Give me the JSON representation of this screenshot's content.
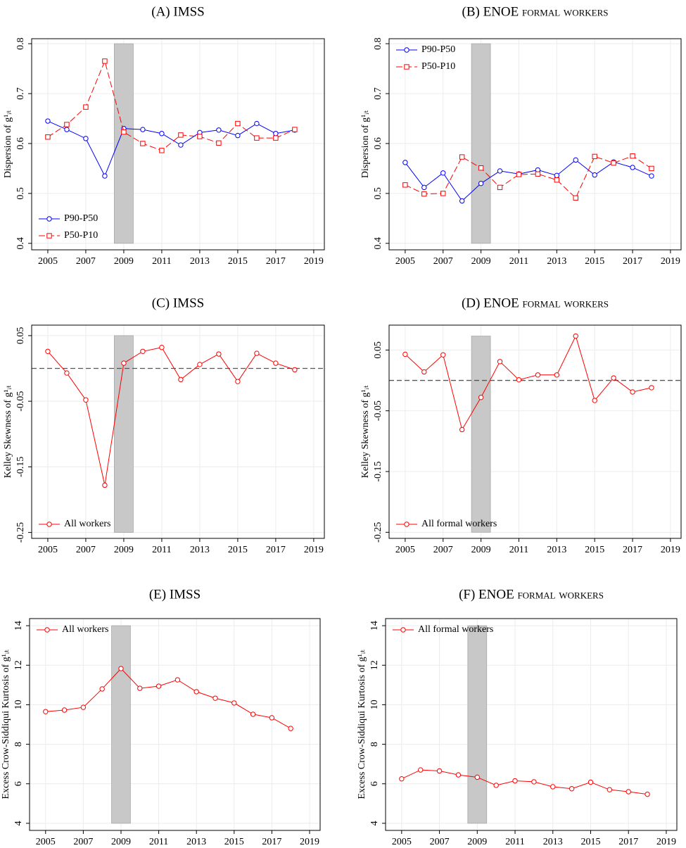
{
  "chart_data": [
    {
      "type": "line",
      "title": "(A) IMSS",
      "y_label": "Dispersion of g¹ᵢₜ",
      "x": [
        2005,
        2006,
        2007,
        2008,
        2009,
        2010,
        2011,
        2012,
        2013,
        2014,
        2015,
        2016,
        2017,
        2018
      ],
      "xlim": [
        2004.15,
        2019.56
      ],
      "xticks": [
        2005,
        2007,
        2009,
        2011,
        2013,
        2015,
        2017,
        2019
      ],
      "ylim": [
        0.387,
        0.81
      ],
      "yticks": [
        0.4,
        0.5,
        0.6,
        0.7,
        0.8
      ],
      "grid": true,
      "legend": "lower left",
      "shade": {
        "x": [
          2008.5,
          2009.5
        ],
        "y": [
          0.4,
          0.8
        ]
      },
      "series": [
        {
          "name": "P90-P50",
          "color": "#0000ff",
          "marker": "circle",
          "linestyle": "solid",
          "values": [
            0.645,
            0.628,
            0.61,
            0.535,
            0.63,
            0.628,
            0.62,
            0.597,
            0.622,
            0.627,
            0.616,
            0.64,
            0.62,
            0.627
          ]
        },
        {
          "name": "P50-P10",
          "color": "#ff0000",
          "marker": "square",
          "linestyle": "dashed",
          "values": [
            0.613,
            0.638,
            0.673,
            0.765,
            0.623,
            0.6,
            0.586,
            0.617,
            0.614,
            0.601,
            0.64,
            0.611,
            0.611,
            0.628
          ]
        }
      ]
    },
    {
      "type": "line",
      "title": "(B) ENOE formal workers",
      "y_label": "Dispersion of g¹ᵢₜ",
      "x": [
        2005,
        2006,
        2007,
        2008,
        2009,
        2010,
        2011,
        2012,
        2013,
        2014,
        2015,
        2016,
        2017,
        2018
      ],
      "xlim": [
        2004.15,
        2019.56
      ],
      "xticks": [
        2005,
        2007,
        2009,
        2011,
        2013,
        2015,
        2017,
        2019
      ],
      "ylim": [
        0.387,
        0.81
      ],
      "yticks": [
        0.4,
        0.5,
        0.6,
        0.7,
        0.8
      ],
      "grid": true,
      "legend": "upper left",
      "shade": {
        "x": [
          2008.5,
          2009.5
        ],
        "y": [
          0.4,
          0.8
        ]
      },
      "series": [
        {
          "name": "P90-P50",
          "color": "#0000ff",
          "marker": "circle",
          "linestyle": "solid",
          "values": [
            0.562,
            0.512,
            0.541,
            0.485,
            0.52,
            0.545,
            0.539,
            0.547,
            0.536,
            0.567,
            0.537,
            0.563,
            0.552,
            0.535
          ]
        },
        {
          "name": "P50-P10",
          "color": "#ff0000",
          "marker": "square",
          "linestyle": "dashed",
          "values": [
            0.517,
            0.499,
            0.5,
            0.573,
            0.551,
            0.512,
            0.538,
            0.539,
            0.527,
            0.491,
            0.574,
            0.561,
            0.575,
            0.55
          ]
        }
      ]
    },
    {
      "type": "line",
      "title": "(C) IMSS",
      "y_label": "Kelley Skewness of g¹ᵢₜ",
      "x": [
        2005,
        2006,
        2007,
        2008,
        2009,
        2010,
        2011,
        2012,
        2013,
        2014,
        2015,
        2016,
        2017,
        2018
      ],
      "xlim": [
        2004.15,
        2019.56
      ],
      "xticks": [
        2005,
        2007,
        2009,
        2011,
        2013,
        2015,
        2017,
        2019
      ],
      "ylim": [
        -0.259,
        0.066
      ],
      "yticks": [
        -0.25,
        -0.15,
        -0.05,
        0.05
      ],
      "grid": true,
      "legend": "lower left",
      "shade": {
        "x": [
          2008.5,
          2009.5
        ],
        "y": [
          -0.25,
          0.05
        ]
      },
      "hline": 0,
      "series": [
        {
          "name": "All workers",
          "color": "#ff0000",
          "marker": "circle",
          "linestyle": "solid",
          "values": [
            0.026,
            -0.007,
            -0.048,
            -0.178,
            0.008,
            0.026,
            0.032,
            -0.017,
            0.006,
            0.022,
            -0.02,
            0.023,
            0.008,
            -0.002
          ]
        }
      ]
    },
    {
      "type": "line",
      "title": "(D) ENOE formal workers",
      "y_label": "Kelley Skewness of g¹ᵢₜ",
      "x": [
        2005,
        2006,
        2007,
        2008,
        2009,
        2010,
        2011,
        2012,
        2013,
        2014,
        2015,
        2016,
        2017,
        2018
      ],
      "xlim": [
        2004.15,
        2019.56
      ],
      "xticks": [
        2005,
        2007,
        2009,
        2011,
        2013,
        2015,
        2017,
        2019
      ],
      "ylim": [
        -0.26,
        0.091
      ],
      "yticks": [
        -0.25,
        -0.15,
        -0.05,
        0.05
      ],
      "grid": true,
      "legend": "lower left",
      "shade": {
        "x": [
          2008.5,
          2009.5
        ],
        "y": [
          -0.25,
          0.073
        ]
      },
      "hline": 0,
      "series": [
        {
          "name": "All formal workers",
          "color": "#ff0000",
          "marker": "circle",
          "linestyle": "solid",
          "values": [
            0.043,
            0.014,
            0.042,
            -0.081,
            -0.028,
            0.031,
            0.001,
            0.009,
            0.009,
            0.073,
            -0.033,
            0.004,
            -0.019,
            -0.012
          ]
        }
      ]
    },
    {
      "type": "line",
      "title": "(E) IMSS",
      "y_label": "Excess Crow-Siddiqui Kurtosis of g¹ᵢₜ",
      "x": [
        2005,
        2006,
        2007,
        2008,
        2009,
        2010,
        2011,
        2012,
        2013,
        2014,
        2015,
        2016,
        2017,
        2018
      ],
      "xlim": [
        2004.15,
        2019.56
      ],
      "xticks": [
        2005,
        2007,
        2009,
        2011,
        2013,
        2015,
        2017,
        2019
      ],
      "ylim": [
        3.64,
        14.36
      ],
      "yticks": [
        4,
        6,
        8,
        10,
        12,
        14
      ],
      "grid": true,
      "legend": "upper left",
      "shade": {
        "x": [
          2008.5,
          2009.5
        ],
        "y": [
          4,
          14
        ]
      },
      "series": [
        {
          "name": "All workers",
          "color": "#ff0000",
          "marker": "circle",
          "linestyle": "solid",
          "values": [
            9.65,
            9.73,
            9.87,
            10.8,
            11.83,
            10.83,
            10.94,
            11.26,
            10.66,
            10.33,
            10.09,
            9.52,
            9.34,
            8.8
          ]
        }
      ]
    },
    {
      "type": "line",
      "title": "(F) ENOE formal workers",
      "y_label": "Excess Crow-Siddiqui Kurtosis of g¹ᵢₜ",
      "x": [
        2005,
        2006,
        2007,
        2008,
        2009,
        2010,
        2011,
        2012,
        2013,
        2014,
        2015,
        2016,
        2017,
        2018
      ],
      "xlim": [
        2004.15,
        2019.56
      ],
      "xticks": [
        2005,
        2007,
        2009,
        2011,
        2013,
        2015,
        2017,
        2019
      ],
      "ylim": [
        3.64,
        14.36
      ],
      "yticks": [
        4,
        6,
        8,
        10,
        12,
        14
      ],
      "grid": true,
      "legend": "upper left",
      "shade": {
        "x": [
          2008.5,
          2009.5
        ],
        "y": [
          4,
          14
        ]
      },
      "series": [
        {
          "name": "All formal workers",
          "color": "#ff0000",
          "marker": "circle",
          "linestyle": "solid",
          "values": [
            6.25,
            6.7,
            6.65,
            6.45,
            6.33,
            5.92,
            6.15,
            6.1,
            5.85,
            5.75,
            6.08,
            5.7,
            5.6,
            5.47
          ]
        }
      ]
    }
  ]
}
